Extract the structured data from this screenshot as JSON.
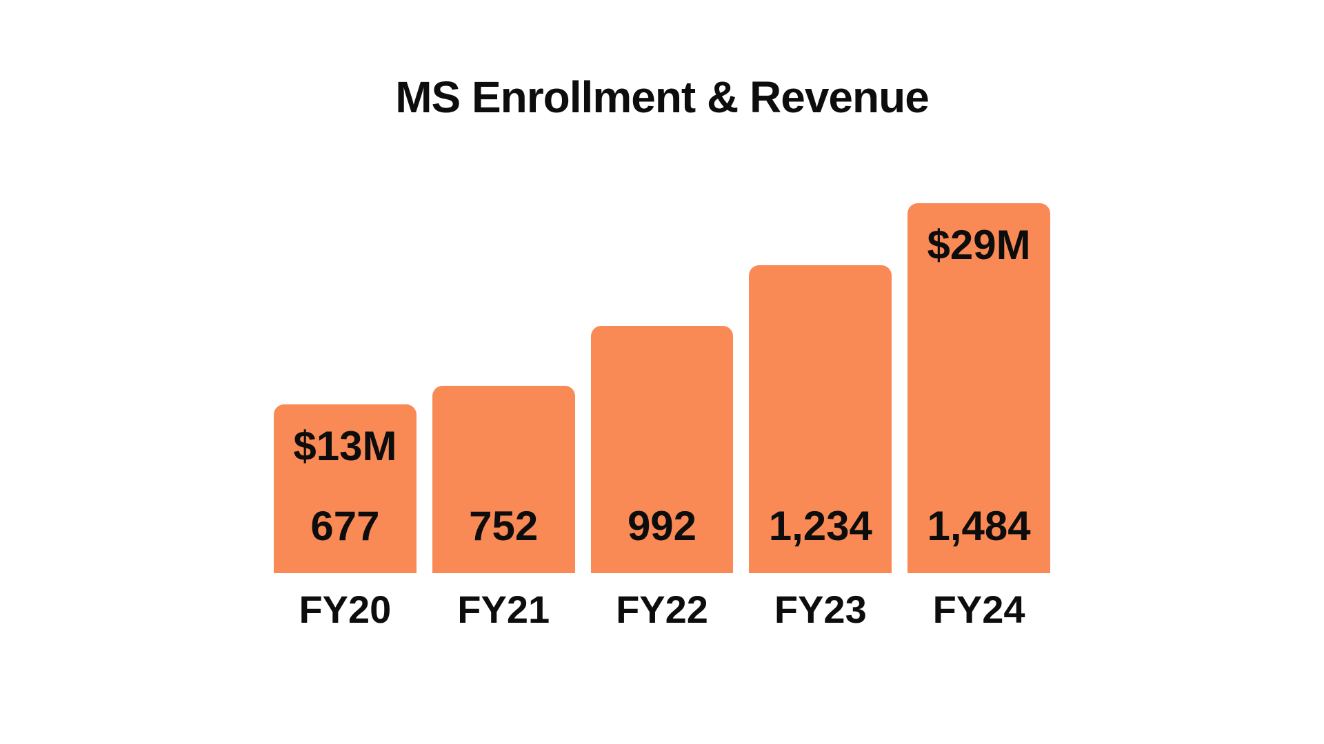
{
  "chart_data": {
    "type": "bar",
    "title": "MS Enrollment & Revenue",
    "categories": [
      "FY20",
      "FY21",
      "FY22",
      "FY23",
      "FY24"
    ],
    "series": [
      {
        "name": "MS Enrollment",
        "values": [
          677,
          752,
          992,
          1234,
          1484
        ]
      },
      {
        "name": "Revenue ($M)",
        "values": [
          13,
          null,
          null,
          null,
          29
        ]
      }
    ],
    "bars": [
      {
        "category": "FY20",
        "value": 677,
        "enrollment_label": "677",
        "revenue_label": "$13M"
      },
      {
        "category": "FY21",
        "value": 752,
        "enrollment_label": "752",
        "revenue_label": ""
      },
      {
        "category": "FY22",
        "value": 992,
        "enrollment_label": "992",
        "revenue_label": ""
      },
      {
        "category": "FY23",
        "value": 1234,
        "enrollment_label": "1,234",
        "revenue_label": ""
      },
      {
        "category": "FY24",
        "value": 1484,
        "enrollment_label": "1,484",
        "revenue_label": "$29M"
      }
    ],
    "annotations": [
      "$13M",
      "$29M"
    ],
    "ylim": [
      0,
      1484
    ],
    "grid": false,
    "axes_hidden": true,
    "legend": "none",
    "bar_color": "#FA8A55",
    "text_color": "#0d0d0d",
    "background_color": "#ffffff"
  }
}
